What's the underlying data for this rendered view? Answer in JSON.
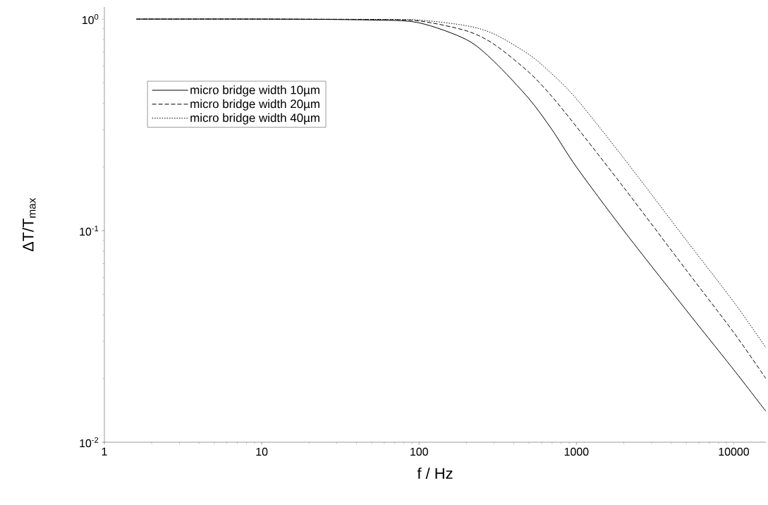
{
  "chart_data": {
    "type": "line",
    "xlabel": "f / Hz",
    "ylabel": "ΔT/T$_{max}$",
    "x": [
      1.6,
      10,
      50,
      100,
      200,
      300,
      500,
      700,
      1000,
      2000,
      5000,
      10000,
      16000
    ],
    "series": [
      {
        "name": "micro bridge width 10µm",
        "color": "#000000",
        "line_style": "solid",
        "values": [
          1,
          1,
          0.99,
          0.96,
          0.8,
          0.63,
          0.42,
          0.3,
          0.2,
          0.1,
          0.042,
          0.022,
          0.014
        ]
      },
      {
        "name": "micro bridge width 20µm",
        "color": "#000000",
        "line_style": "dashed",
        "values": [
          1,
          1,
          0.995,
          0.98,
          0.88,
          0.76,
          0.56,
          0.43,
          0.31,
          0.16,
          0.065,
          0.033,
          0.02
        ]
      },
      {
        "name": "micro bridge width 40µm",
        "color": "#000000",
        "line_style": "dotted",
        "values": [
          1,
          1,
          0.997,
          0.99,
          0.93,
          0.85,
          0.68,
          0.55,
          0.42,
          0.22,
          0.09,
          0.046,
          0.028
        ]
      }
    ],
    "log": "xy",
    "xlim": [
      1,
      16000
    ],
    "ylim": [
      0.01,
      1.14
    ],
    "xticks": [
      1,
      10,
      100,
      1000,
      10000
    ],
    "yticks": [
      {
        "value": 0.01,
        "label": "10$^{-2}$"
      },
      {
        "value": 0.1,
        "label": "10$^{-1}$"
      },
      {
        "value": 1,
        "label": "10$^{0}$"
      }
    ],
    "legend": "top left",
    "grid": false,
    "marker": "none"
  }
}
